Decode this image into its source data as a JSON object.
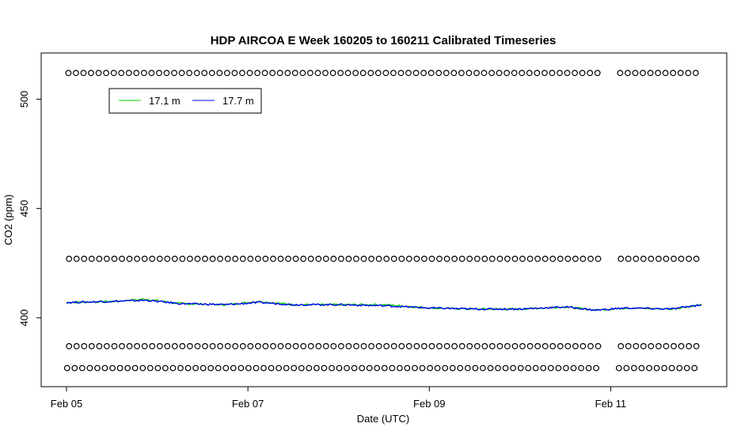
{
  "chart_data": {
    "type": "scatter",
    "title": "HDP AIRCOA E  Week 160205 to 160211  Calibrated Timeseries",
    "xlabel": "Date (UTC)",
    "ylabel": "CO2 (ppm)",
    "x_ticks": [
      "Feb 05",
      "Feb 07",
      "Feb 09",
      "Feb 11"
    ],
    "y_ticks": [
      400,
      450,
      500
    ],
    "xlim": [
      "2016-02-05 00:00",
      "2016-02-12 00:00"
    ],
    "ylim": [
      375,
      515
    ],
    "legend": {
      "placement": "top-left",
      "entries": [
        {
          "label": "17.1 m",
          "color": "#00cc00"
        },
        {
          "label": "17.7 m",
          "color": "#0000ff"
        }
      ]
    },
    "series": [
      {
        "name": "17.1 m",
        "color": "#00cc00",
        "kind": "line",
        "x": [
          "2016-02-05 00:00",
          "2016-02-05 12:00",
          "2016-02-05 21:00",
          "2016-02-06 06:00",
          "2016-02-06 18:00",
          "2016-02-07 03:00",
          "2016-02-07 12:00",
          "2016-02-08 00:00",
          "2016-02-08 12:00",
          "2016-02-09 00:00",
          "2016-02-09 12:00",
          "2016-02-10 00:00",
          "2016-02-10 12:00",
          "2016-02-10 20:00",
          "2016-02-11 04:00",
          "2016-02-11 16:00",
          "2016-02-12 00:00"
        ],
        "y": [
          407,
          407.5,
          408.5,
          406.5,
          406,
          407.5,
          406,
          406,
          406,
          404.5,
          404,
          404,
          405,
          403.5,
          404.5,
          404,
          406
        ]
      },
      {
        "name": "17.7 m",
        "color": "#0000ff",
        "kind": "line",
        "x": [
          "2016-02-05 00:00",
          "2016-02-05 12:00",
          "2016-02-05 21:00",
          "2016-02-06 06:00",
          "2016-02-06 18:00",
          "2016-02-07 03:00",
          "2016-02-07 12:00",
          "2016-02-08 00:00",
          "2016-02-08 12:00",
          "2016-02-09 00:00",
          "2016-02-09 12:00",
          "2016-02-10 00:00",
          "2016-02-10 12:00",
          "2016-02-10 20:00",
          "2016-02-11 04:00",
          "2016-02-11 16:00",
          "2016-02-12 00:00"
        ],
        "y": [
          407,
          407.5,
          408,
          406.5,
          406,
          407,
          406,
          406,
          405.5,
          404.5,
          404,
          404,
          405,
          403.5,
          404.5,
          404,
          406
        ]
      },
      {
        "name": "",
        "color": "#000000",
        "kind": "points",
        "y_level": 512,
        "x_start": "2016-02-05 00:30",
        "x_end": "2016-02-11 23:00",
        "points_per_hour": 0.5,
        "gaps": [
          [
            "2016-02-10 21:00",
            "2016-02-11 01:30"
          ]
        ]
      },
      {
        "name": "",
        "color": "#000000",
        "kind": "points",
        "y_level": 427,
        "x_start": "2016-02-05 00:40",
        "x_end": "2016-02-11 23:00",
        "points_per_hour": 0.5,
        "gaps": [
          [
            "2016-02-10 21:00",
            "2016-02-11 01:30"
          ]
        ]
      },
      {
        "name": "",
        "color": "#000000",
        "kind": "points",
        "y_level": 387,
        "x_start": "2016-02-05 00:40",
        "x_end": "2016-02-11 23:00",
        "points_per_hour": 0.5,
        "gaps": [
          [
            "2016-02-10 21:00",
            "2016-02-11 01:00"
          ]
        ]
      },
      {
        "name": "",
        "color": "#000000",
        "kind": "points",
        "y_level": 377,
        "x_start": "2016-02-05 00:10",
        "x_end": "2016-02-11 23:00",
        "points_per_hour": 0.5,
        "gaps": [
          [
            "2016-02-10 21:00",
            "2016-02-11 00:30"
          ]
        ]
      }
    ]
  }
}
